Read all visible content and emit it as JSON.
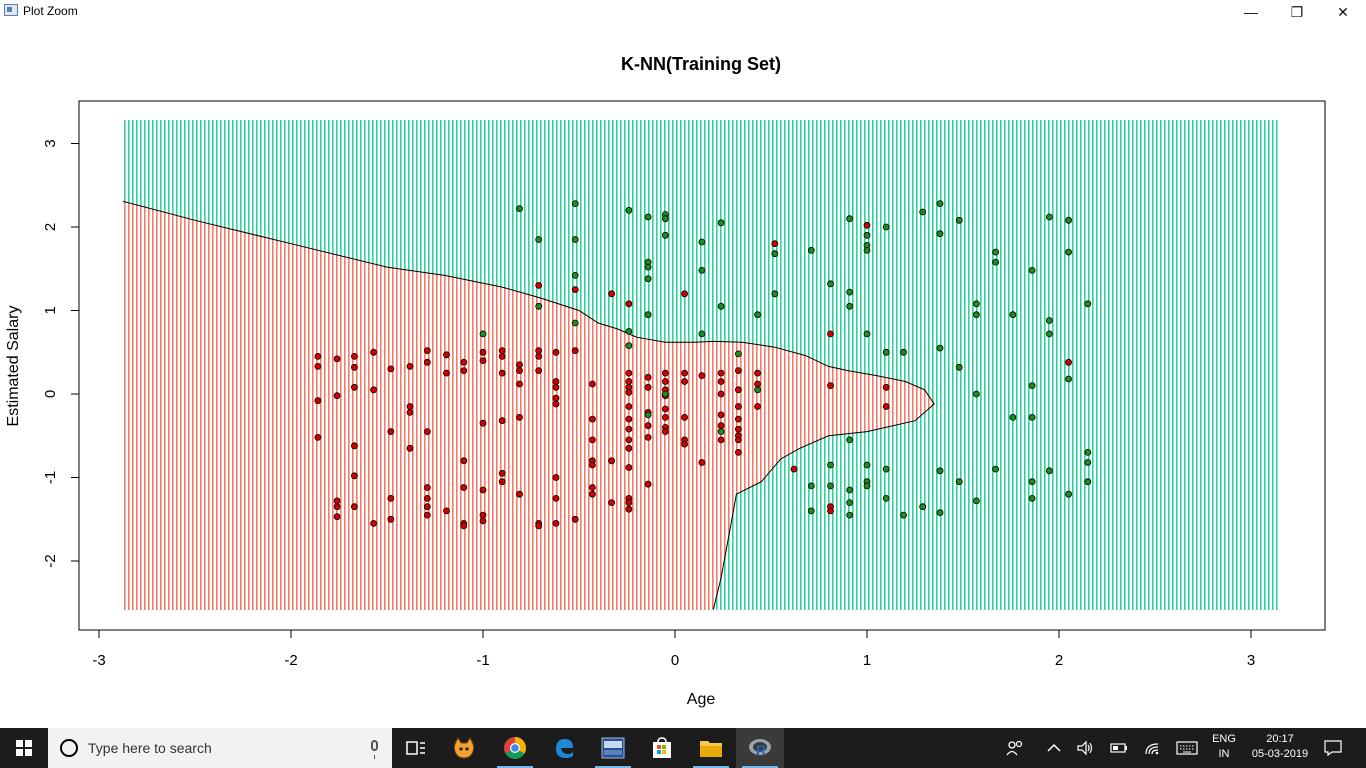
{
  "window": {
    "title": "Plot Zoom",
    "minimize_glyph": "—",
    "restore_glyph": "❐",
    "close_glyph": "✕"
  },
  "chart_data": {
    "type": "scatter",
    "title": "K-NN(Training Set)",
    "xlabel": "Age",
    "ylabel": "Estimated Salary",
    "xlim": [
      -3.15,
      3.35
    ],
    "ylim": [
      -2.85,
      3.5
    ],
    "xticks": [
      -3,
      -2,
      -1,
      0,
      1,
      2,
      3
    ],
    "yticks": [
      -2,
      -1,
      0,
      1,
      2,
      3
    ],
    "grid": false,
    "region_colors": {
      "class0": "#f27c6a",
      "class1": "#2fd39b"
    },
    "point_colors": {
      "class0": "#d40000",
      "class1": "#1f8c1f"
    },
    "decision_boundary": [
      [
        -2.88,
        2.31
      ],
      [
        -2.5,
        2.08
      ],
      [
        -2.0,
        1.8
      ],
      [
        -1.5,
        1.52
      ],
      [
        -1.2,
        1.42
      ],
      [
        -0.9,
        1.28
      ],
      [
        -0.7,
        1.15
      ],
      [
        -0.5,
        1.0
      ],
      [
        -0.4,
        0.85
      ],
      [
        -0.3,
        0.78
      ],
      [
        -0.2,
        0.68
      ],
      [
        -0.05,
        0.62
      ],
      [
        0.1,
        0.62
      ],
      [
        0.2,
        0.63
      ],
      [
        0.35,
        0.62
      ],
      [
        0.52,
        0.56
      ],
      [
        0.68,
        0.46
      ],
      [
        0.8,
        0.33
      ],
      [
        0.9,
        0.28
      ],
      [
        1.05,
        0.22
      ],
      [
        1.2,
        0.15
      ],
      [
        1.3,
        0.05
      ],
      [
        1.35,
        -0.12
      ],
      [
        1.25,
        -0.32
      ],
      [
        1.0,
        -0.45
      ],
      [
        0.8,
        -0.5
      ],
      [
        0.65,
        -0.65
      ],
      [
        0.55,
        -0.78
      ],
      [
        0.45,
        -1.05
      ],
      [
        0.32,
        -1.2
      ],
      [
        0.28,
        -1.7
      ],
      [
        0.24,
        -2.2
      ],
      [
        0.2,
        -2.58
      ]
    ],
    "series": [
      {
        "class": 0,
        "points": [
          [
            -1.86,
            0.45
          ],
          [
            -1.86,
            0.33
          ],
          [
            -1.86,
            -0.08
          ],
          [
            -1.86,
            -0.52
          ],
          [
            -1.76,
            0.42
          ],
          [
            -1.76,
            -0.02
          ],
          [
            -1.76,
            -1.28
          ],
          [
            -1.76,
            -1.35
          ],
          [
            -1.76,
            -1.47
          ],
          [
            -1.67,
            0.45
          ],
          [
            -1.67,
            0.32
          ],
          [
            -1.67,
            0.08
          ],
          [
            -1.67,
            -0.62
          ],
          [
            -1.67,
            -0.98
          ],
          [
            -1.67,
            -1.35
          ],
          [
            -1.57,
            0.5
          ],
          [
            -1.57,
            0.05
          ],
          [
            -1.57,
            -1.55
          ],
          [
            -1.48,
            0.3
          ],
          [
            -1.48,
            -0.45
          ],
          [
            -1.48,
            -1.25
          ],
          [
            -1.48,
            -1.5
          ],
          [
            -1.38,
            0.33
          ],
          [
            -1.38,
            -0.15
          ],
          [
            -1.38,
            -0.22
          ],
          [
            -1.38,
            -0.65
          ],
          [
            -1.29,
            0.52
          ],
          [
            -1.29,
            0.38
          ],
          [
            -1.29,
            -0.45
          ],
          [
            -1.29,
            -1.12
          ],
          [
            -1.29,
            -1.25
          ],
          [
            -1.29,
            -1.35
          ],
          [
            -1.29,
            -1.45
          ],
          [
            -1.19,
            0.47
          ],
          [
            -1.19,
            0.25
          ],
          [
            -1.19,
            -1.4
          ],
          [
            -1.1,
            0.38
          ],
          [
            -1.1,
            0.28
          ],
          [
            -1.1,
            -0.8
          ],
          [
            -1.1,
            -1.12
          ],
          [
            -1.1,
            -1.55
          ],
          [
            -1.1,
            -1.58
          ],
          [
            -1.0,
            0.5
          ],
          [
            -1.0,
            0.4
          ],
          [
            -1.0,
            -0.35
          ],
          [
            -1.0,
            -1.15
          ],
          [
            -1.0,
            -1.45
          ],
          [
            -1.0,
            -1.52
          ],
          [
            -0.9,
            0.52
          ],
          [
            -0.9,
            0.45
          ],
          [
            -0.9,
            0.25
          ],
          [
            -0.9,
            -0.32
          ],
          [
            -0.9,
            -0.95
          ],
          [
            -0.9,
            -1.05
          ],
          [
            -0.81,
            0.35
          ],
          [
            -0.81,
            0.28
          ],
          [
            -0.81,
            0.12
          ],
          [
            -0.81,
            -0.28
          ],
          [
            -0.81,
            -1.2
          ],
          [
            -0.71,
            1.3
          ],
          [
            -0.71,
            0.52
          ],
          [
            -0.71,
            0.45
          ],
          [
            -0.71,
            0.28
          ],
          [
            -0.71,
            -1.55
          ],
          [
            -0.71,
            -1.58
          ],
          [
            -0.62,
            0.5
          ],
          [
            -0.62,
            0.15
          ],
          [
            -0.62,
            0.08
          ],
          [
            -0.62,
            -0.05
          ],
          [
            -0.62,
            -0.12
          ],
          [
            -0.62,
            -1.0
          ],
          [
            -0.62,
            -1.25
          ],
          [
            -0.62,
            -1.55
          ],
          [
            -0.52,
            1.25
          ],
          [
            -0.52,
            0.52
          ],
          [
            -0.52,
            -1.5
          ],
          [
            -0.43,
            0.12
          ],
          [
            -0.43,
            -0.3
          ],
          [
            -0.43,
            -0.55
          ],
          [
            -0.43,
            -0.8
          ],
          [
            -0.43,
            -0.85
          ],
          [
            -0.43,
            -1.12
          ],
          [
            -0.43,
            -1.2
          ],
          [
            -0.33,
            -0.8
          ],
          [
            -0.33,
            -1.3
          ],
          [
            -0.24,
            0.25
          ],
          [
            -0.24,
            0.15
          ],
          [
            -0.24,
            0.08
          ],
          [
            -0.24,
            0.02
          ],
          [
            -0.24,
            -0.15
          ],
          [
            -0.24,
            -0.3
          ],
          [
            -0.24,
            -0.42
          ],
          [
            -0.24,
            -0.55
          ],
          [
            -0.24,
            -0.65
          ],
          [
            -0.24,
            -0.88
          ],
          [
            -0.24,
            -1.25
          ],
          [
            -0.24,
            -1.3
          ],
          [
            -0.24,
            -1.38
          ],
          [
            -0.14,
            0.2
          ],
          [
            -0.14,
            0.08
          ],
          [
            -0.14,
            -0.22
          ],
          [
            -0.14,
            -0.38
          ],
          [
            -0.14,
            -0.52
          ],
          [
            -0.14,
            -1.08
          ],
          [
            -0.05,
            0.25
          ],
          [
            -0.05,
            0.15
          ],
          [
            -0.05,
            0.05
          ],
          [
            -0.05,
            -0.02
          ],
          [
            -0.05,
            -0.18
          ],
          [
            -0.05,
            -0.28
          ],
          [
            -0.05,
            -0.4
          ],
          [
            -0.05,
            -0.45
          ],
          [
            0.05,
            0.25
          ],
          [
            0.05,
            0.15
          ],
          [
            0.05,
            -0.28
          ],
          [
            0.05,
            -0.55
          ],
          [
            0.05,
            -0.6
          ],
          [
            0.14,
            0.22
          ],
          [
            0.14,
            -0.82
          ],
          [
            0.24,
            0.25
          ],
          [
            0.24,
            0.15
          ],
          [
            0.24,
            0.0
          ],
          [
            0.24,
            -0.25
          ],
          [
            0.24,
            -0.38
          ],
          [
            0.24,
            -0.55
          ],
          [
            0.33,
            0.28
          ],
          [
            0.33,
            0.05
          ],
          [
            0.33,
            -0.15
          ],
          [
            0.33,
            -0.3
          ],
          [
            0.33,
            -0.42
          ],
          [
            0.33,
            -0.5
          ],
          [
            0.33,
            -0.55
          ],
          [
            0.33,
            -0.7
          ],
          [
            0.43,
            0.25
          ],
          [
            0.43,
            0.12
          ],
          [
            0.43,
            -0.15
          ],
          [
            0.52,
            1.8
          ],
          [
            0.62,
            -0.9
          ],
          [
            0.81,
            0.72
          ],
          [
            0.81,
            0.1
          ],
          [
            0.81,
            -1.35
          ],
          [
            0.81,
            -1.4
          ],
          [
            1.0,
            2.02
          ],
          [
            1.1,
            0.08
          ],
          [
            1.1,
            -0.15
          ],
          [
            2.05,
            0.38
          ],
          [
            -0.33,
            1.2
          ],
          [
            -0.24,
            1.08
          ],
          [
            0.05,
            1.2
          ]
        ]
      },
      {
        "class": 1,
        "points": [
          [
            -0.81,
            2.22
          ],
          [
            -0.71,
            1.85
          ],
          [
            -0.52,
            2.28
          ],
          [
            -0.52,
            1.85
          ],
          [
            -0.24,
            2.2
          ],
          [
            -0.14,
            2.12
          ],
          [
            -0.05,
            2.15
          ],
          [
            -0.05,
            2.1
          ],
          [
            -0.05,
            1.9
          ],
          [
            0.14,
            1.82
          ],
          [
            0.24,
            2.05
          ],
          [
            0.52,
            1.68
          ],
          [
            0.71,
            1.72
          ],
          [
            0.91,
            2.1
          ],
          [
            1.0,
            1.9
          ],
          [
            1.0,
            1.78
          ],
          [
            1.0,
            1.72
          ],
          [
            1.1,
            2.0
          ],
          [
            1.29,
            2.18
          ],
          [
            1.38,
            2.28
          ],
          [
            1.38,
            1.92
          ],
          [
            1.48,
            2.08
          ],
          [
            1.67,
            1.7
          ],
          [
            1.67,
            1.58
          ],
          [
            1.95,
            2.12
          ],
          [
            2.05,
            2.08
          ],
          [
            2.05,
            1.7
          ],
          [
            1.86,
            1.48
          ],
          [
            -0.14,
            1.58
          ],
          [
            -0.14,
            1.52
          ],
          [
            -0.14,
            1.38
          ],
          [
            0.14,
            1.48
          ],
          [
            -0.52,
            1.42
          ],
          [
            -0.71,
            1.05
          ],
          [
            -0.52,
            0.85
          ],
          [
            -0.24,
            0.75
          ],
          [
            -0.14,
            0.95
          ],
          [
            0.24,
            1.05
          ],
          [
            0.43,
            0.95
          ],
          [
            0.52,
            1.2
          ],
          [
            0.81,
            1.32
          ],
          [
            0.91,
            1.22
          ],
          [
            0.91,
            1.05
          ],
          [
            1.57,
            1.08
          ],
          [
            1.57,
            0.95
          ],
          [
            1.76,
            0.95
          ],
          [
            1.95,
            0.88
          ],
          [
            1.95,
            0.72
          ],
          [
            2.15,
            1.08
          ],
          [
            -1.0,
            0.72
          ],
          [
            -0.24,
            0.58
          ],
          [
            0.14,
            0.72
          ],
          [
            0.33,
            0.48
          ],
          [
            1.0,
            0.72
          ],
          [
            1.1,
            0.5
          ],
          [
            1.19,
            0.5
          ],
          [
            1.38,
            0.55
          ],
          [
            1.48,
            0.32
          ],
          [
            1.57,
            0.0
          ],
          [
            1.86,
            0.1
          ],
          [
            1.86,
            -0.28
          ],
          [
            2.05,
            0.18
          ],
          [
            1.76,
            -0.28
          ],
          [
            0.91,
            -0.55
          ],
          [
            0.81,
            -0.85
          ],
          [
            1.0,
            -0.85
          ],
          [
            1.1,
            -0.9
          ],
          [
            1.38,
            -0.92
          ],
          [
            1.67,
            -0.9
          ],
          [
            1.95,
            -0.92
          ],
          [
            2.15,
            -0.7
          ],
          [
            2.15,
            -0.82
          ],
          [
            2.15,
            -1.05
          ],
          [
            0.71,
            -1.1
          ],
          [
            0.81,
            -1.1
          ],
          [
            0.91,
            -1.15
          ],
          [
            0.91,
            -1.3
          ],
          [
            0.91,
            -1.45
          ],
          [
            1.0,
            -1.05
          ],
          [
            1.0,
            -1.1
          ],
          [
            1.1,
            -1.25
          ],
          [
            1.19,
            -1.45
          ],
          [
            1.29,
            -1.35
          ],
          [
            1.38,
            -1.42
          ],
          [
            1.48,
            -1.05
          ],
          [
            1.57,
            -1.28
          ],
          [
            1.86,
            -1.05
          ],
          [
            1.86,
            -1.25
          ],
          [
            2.05,
            -1.2
          ],
          [
            0.71,
            -1.4
          ],
          [
            -0.05,
            0.0
          ],
          [
            0.43,
            0.05
          ],
          [
            -0.14,
            -0.25
          ],
          [
            0.24,
            -0.45
          ]
        ]
      }
    ]
  },
  "taskbar": {
    "search_placeholder": "Type here to search",
    "lang_line1": "ENG",
    "lang_line2": "IN",
    "time": "20:17",
    "date": "05-03-2019"
  }
}
